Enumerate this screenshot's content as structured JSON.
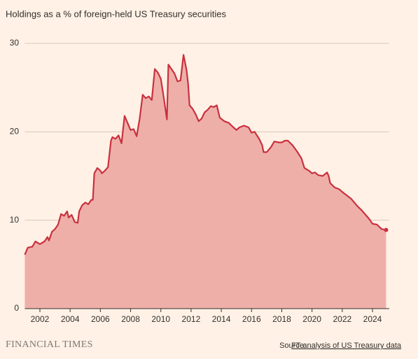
{
  "chart_data": {
    "type": "area",
    "title": "Holdings as a % of foreign-held US Treasury securities",
    "x": [
      2001.0,
      2001.2,
      2001.5,
      2001.7,
      2002.0,
      2002.3,
      2002.5,
      2002.6,
      2002.8,
      2003.0,
      2003.2,
      2003.4,
      2003.6,
      2003.8,
      2003.9,
      2004.1,
      2004.3,
      2004.5,
      2004.6,
      2004.8,
      2005.0,
      2005.2,
      2005.4,
      2005.5,
      2005.6,
      2005.8,
      2006.0,
      2006.1,
      2006.3,
      2006.5,
      2006.7,
      2006.8,
      2007.0,
      2007.2,
      2007.4,
      2007.6,
      2007.8,
      2008.0,
      2008.2,
      2008.4,
      2008.6,
      2008.8,
      2009.0,
      2009.2,
      2009.4,
      2009.6,
      2009.8,
      2010.0,
      2010.2,
      2010.4,
      2010.5,
      2010.7,
      2010.9,
      2011.1,
      2011.3,
      2011.5,
      2011.7,
      2011.8,
      2011.9,
      2012.1,
      2012.3,
      2012.5,
      2012.7,
      2012.9,
      2013.1,
      2013.3,
      2013.5,
      2013.7,
      2013.9,
      2014.2,
      2014.5,
      2014.8,
      2015.0,
      2015.2,
      2015.5,
      2015.8,
      2016.0,
      2016.2,
      2016.5,
      2016.7,
      2016.8,
      2017.0,
      2017.3,
      2017.5,
      2017.8,
      2018.0,
      2018.2,
      2018.4,
      2018.7,
      2019.0,
      2019.3,
      2019.5,
      2019.8,
      2020.0,
      2020.2,
      2020.4,
      2020.7,
      2021.0,
      2021.1,
      2021.2,
      2021.5,
      2021.8,
      2022.0,
      2022.3,
      2022.6,
      2022.8,
      2023.0,
      2023.3,
      2023.6,
      2023.8,
      2024.0,
      2024.3,
      2024.6,
      2024.9
    ],
    "values": [
      6.1,
      6.9,
      7.0,
      7.6,
      7.3,
      7.6,
      8.1,
      7.7,
      8.7,
      9.0,
      9.5,
      10.7,
      10.5,
      11.0,
      10.3,
      10.6,
      9.8,
      9.7,
      11.0,
      11.7,
      12.0,
      11.8,
      12.3,
      12.3,
      15.3,
      15.9,
      15.6,
      15.3,
      15.6,
      16.0,
      19.0,
      19.4,
      19.2,
      19.6,
      18.7,
      21.8,
      21.0,
      20.2,
      20.3,
      19.5,
      21.5,
      24.2,
      23.8,
      24.0,
      23.6,
      27.1,
      26.7,
      26.0,
      23.8,
      21.4,
      27.6,
      27.1,
      26.6,
      25.7,
      25.8,
      28.7,
      27.0,
      25.5,
      23.0,
      22.6,
      22.0,
      21.2,
      21.5,
      22.2,
      22.5,
      22.9,
      22.8,
      23.0,
      21.6,
      21.2,
      21.0,
      20.5,
      20.2,
      20.5,
      20.7,
      20.5,
      19.9,
      20.0,
      19.2,
      18.5,
      17.7,
      17.7,
      18.3,
      18.9,
      18.8,
      18.8,
      19.0,
      19.0,
      18.5,
      17.8,
      17.0,
      15.9,
      15.6,
      15.3,
      15.4,
      15.1,
      15.0,
      15.4,
      15.0,
      14.2,
      13.7,
      13.5,
      13.2,
      12.8,
      12.4,
      12.0,
      11.6,
      11.1,
      10.5,
      10.1,
      9.6,
      9.5,
      9.0,
      8.9
    ],
    "color": "#c9313f",
    "fill": "#efafa9",
    "xlim": [
      2001,
      2025
    ],
    "xticks": [
      2002,
      2004,
      2006,
      2008,
      2010,
      2012,
      2014,
      2016,
      2018,
      2020,
      2022,
      2024
    ],
    "ylim": [
      0,
      30
    ],
    "yticks": [
      0,
      10,
      20,
      30
    ],
    "grid": true
  },
  "footer": {
    "brand": "FINANCIAL TIMES",
    "source_label": "Source:",
    "source_link": "FT analysis of US Treasury data"
  }
}
